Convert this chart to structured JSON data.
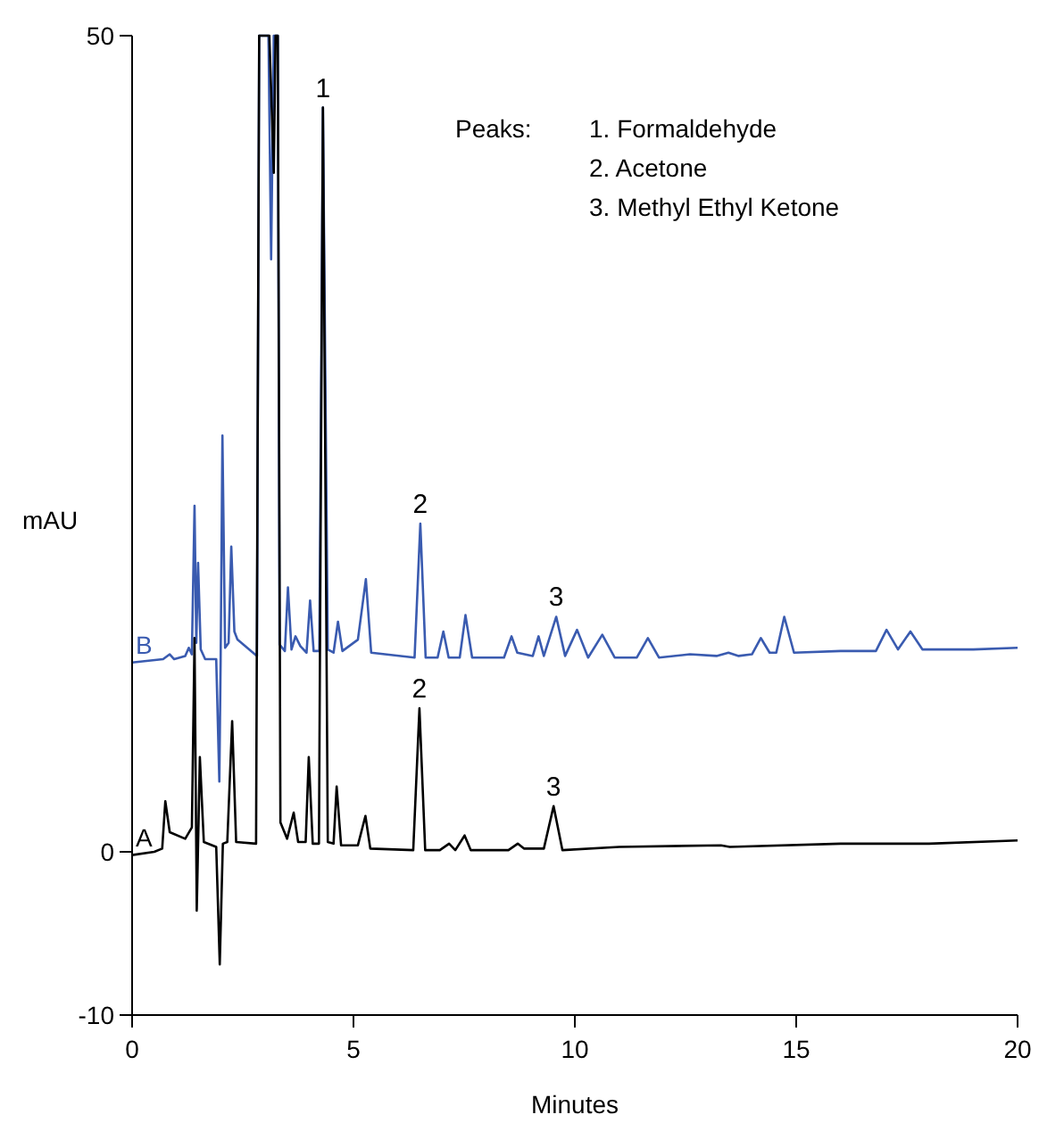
{
  "chart_data": {
    "type": "line",
    "xlabel": "Minutes",
    "ylabel": "mAU",
    "xlim": [
      0,
      20
    ],
    "ylim": [
      -10,
      50
    ],
    "xticks": [
      0,
      5,
      10,
      15,
      20
    ],
    "yticks": [
      -10,
      0,
      50
    ],
    "grid": false,
    "marker": "none",
    "line_style": "solid",
    "series": [
      {
        "name": "A",
        "color": "#000000",
        "x": [
          0,
          0.5,
          0.68,
          0.75,
          0.85,
          1.2,
          1.35,
          1.41,
          1.46,
          1.53,
          1.62,
          1.9,
          1.98,
          2.05,
          2.15,
          2.26,
          2.35,
          2.8,
          2.87,
          3.1,
          3.2,
          3.24,
          3.29,
          3.35,
          3.5,
          3.65,
          3.75,
          3.92,
          3.99,
          4.08,
          4.22,
          4.31,
          4.42,
          4.55,
          4.62,
          4.72,
          5.1,
          5.27,
          5.38,
          6.35,
          6.49,
          6.62,
          6.95,
          7.16,
          7.3,
          7.51,
          7.65,
          8.5,
          8.71,
          8.85,
          9.3,
          9.52,
          9.72,
          11,
          13.3,
          13.5,
          16,
          18,
          20
        ],
        "values": [
          -0.2,
          0,
          0.2,
          3.1,
          1.2,
          0.8,
          1.5,
          13.1,
          -3.6,
          5.8,
          0.6,
          0.3,
          -6.9,
          0.5,
          0.6,
          8.0,
          0.6,
          0.5,
          50,
          50,
          41.6,
          50,
          50,
          1.8,
          0.8,
          2.4,
          0.6,
          0.6,
          5.8,
          0.5,
          0.5,
          45.6,
          0.6,
          0.5,
          4.0,
          0.4,
          0.4,
          2.2,
          0.2,
          0.1,
          8.8,
          0.1,
          0.1,
          0.5,
          0.1,
          1.0,
          0.1,
          0.1,
          0.5,
          0.2,
          0.2,
          2.8,
          0.1,
          0.3,
          0.4,
          0.3,
          0.5,
          0.5,
          0.7
        ]
      },
      {
        "name": "B",
        "color": "#3a5bb0",
        "x": [
          0,
          0.7,
          0.85,
          0.95,
          1.2,
          1.28,
          1.35,
          1.41,
          1.45,
          1.49,
          1.55,
          1.65,
          1.9,
          1.97,
          2.0,
          2.04,
          2.1,
          2.18,
          2.24,
          2.31,
          2.38,
          2.82,
          2.87,
          3.08,
          3.14,
          3.2,
          3.29,
          3.33,
          3.45,
          3.52,
          3.6,
          3.69,
          3.8,
          3.94,
          4.02,
          4.1,
          4.23,
          4.31,
          4.42,
          4.55,
          4.65,
          4.75,
          5.1,
          5.28,
          5.4,
          6.38,
          6.51,
          6.63,
          6.9,
          7.03,
          7.15,
          7.4,
          7.53,
          7.68,
          8.4,
          8.57,
          8.7,
          9.05,
          9.18,
          9.3,
          9.58,
          9.78,
          10.05,
          10.3,
          10.62,
          10.9,
          11.4,
          11.65,
          11.9,
          12.6,
          13.2,
          13.47,
          13.7,
          14.0,
          14.2,
          14.4,
          14.55,
          14.73,
          14.95,
          16,
          16.8,
          17.04,
          17.3,
          17.58,
          17.85,
          19,
          20
        ],
        "values": [
          11.6,
          11.8,
          12.1,
          11.8,
          12.0,
          12.5,
          12.1,
          21.2,
          12.8,
          17.7,
          12.4,
          11.8,
          11.8,
          4.3,
          11.8,
          25.5,
          12.5,
          12.8,
          18.7,
          13.5,
          13.0,
          12.0,
          50,
          50,
          36.3,
          50,
          50,
          12.7,
          12.3,
          16.2,
          12.4,
          13.2,
          12.6,
          12.2,
          15.4,
          12.3,
          12.3,
          45.6,
          12.4,
          12.2,
          14.1,
          12.3,
          13.0,
          16.7,
          12.2,
          11.9,
          20.1,
          11.9,
          11.9,
          13.5,
          11.9,
          11.9,
          14.5,
          11.9,
          11.9,
          13.2,
          12.2,
          12.0,
          13.2,
          12.0,
          14.4,
          12.0,
          13.6,
          11.9,
          13.3,
          11.9,
          11.9,
          13.1,
          11.9,
          12.1,
          12.0,
          12.2,
          12.0,
          12.1,
          13.1,
          12.2,
          12.2,
          14.4,
          12.2,
          12.3,
          12.3,
          13.6,
          12.4,
          13.5,
          12.4,
          12.4,
          12.5
        ]
      }
    ],
    "annotations": [
      "Peaks:",
      "1. Formaldehyde",
      "2. Acetone",
      "3. Methyl Ethyl Ketone",
      {
        "text": "1",
        "x": 4.31,
        "y": 45.6
      },
      {
        "text": "2",
        "x": 6.51,
        "y": 20.1
      },
      {
        "text": "3",
        "x": 9.58,
        "y": 14.4
      },
      {
        "text": "2",
        "x": 6.49,
        "y": 8.8
      },
      {
        "text": "3",
        "x": 9.52,
        "y": 2.8
      }
    ]
  }
}
